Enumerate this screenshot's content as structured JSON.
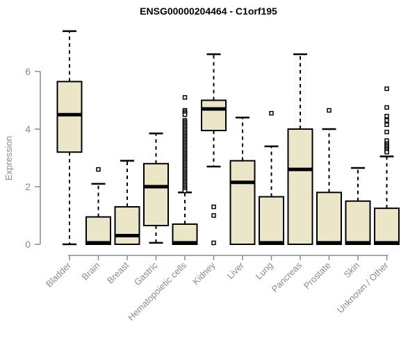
{
  "title": "ENSG00000204464 - C1orf195",
  "chart_data": {
    "type": "boxplot",
    "title": "ENSG00000204464 - C1orf195",
    "xlabel": "",
    "ylabel": "Expression",
    "ylim": [
      0,
      7.5
    ],
    "yticks": [
      0,
      2,
      4,
      6
    ],
    "grid": false,
    "legend": "none",
    "box_fill": "#ece6c9",
    "box_stroke": "#000000",
    "axis_color": "#8a8a8a",
    "categories": [
      "Bladder",
      "Brain",
      "Breast",
      "Gastric",
      "Hematopoietic cells",
      "Kidney",
      "Liver",
      "Lung",
      "Pancreas",
      "Prostate",
      "Skin",
      "Unknown / Other"
    ],
    "series": [
      {
        "name": "Bladder",
        "whisker_low": 0,
        "q1": 3.2,
        "median": 4.5,
        "q3": 5.65,
        "whisker_high": 7.4,
        "outliers": []
      },
      {
        "name": "Brain",
        "whisker_low": 0,
        "q1": 0,
        "median": 0.05,
        "q3": 0.95,
        "whisker_high": 2.1,
        "outliers": [
          2.6
        ]
      },
      {
        "name": "Breast",
        "whisker_low": 0,
        "q1": 0,
        "median": 0.3,
        "q3": 1.3,
        "whisker_high": 2.9,
        "outliers": []
      },
      {
        "name": "Gastric",
        "whisker_low": 0.05,
        "q1": 0.65,
        "median": 2.0,
        "q3": 2.8,
        "whisker_high": 3.85,
        "outliers": []
      },
      {
        "name": "Hematopoietic cells",
        "whisker_low": 0,
        "q1": 0,
        "median": 0.05,
        "q3": 0.7,
        "whisker_high": 1.8,
        "outliers": [
          5.1,
          4.65,
          4.6,
          4.55,
          4.5,
          4.3,
          4.25,
          4.2,
          4.15,
          4.1,
          4.05,
          4.0,
          3.95,
          3.9,
          3.85,
          3.8,
          3.75,
          3.7,
          3.65,
          3.6,
          3.55,
          3.5,
          3.45,
          3.4,
          3.35,
          3.3,
          3.25,
          3.2,
          3.15,
          3.1,
          3.05,
          3.0,
          2.95,
          2.9,
          2.85,
          2.8,
          2.75,
          2.7,
          2.65,
          2.6,
          2.55,
          2.5,
          2.45,
          2.4,
          2.35,
          2.3,
          2.25,
          2.2,
          2.15,
          2.1,
          2.05,
          2.0,
          1.95,
          1.9,
          1.85
        ]
      },
      {
        "name": "Kidney",
        "whisker_low": 2.7,
        "q1": 3.95,
        "median": 4.7,
        "q3": 5.0,
        "whisker_high": 6.6,
        "outliers": [
          1.3,
          1.0,
          0.05
        ]
      },
      {
        "name": "Liver",
        "whisker_low": 0,
        "q1": 0,
        "median": 2.15,
        "q3": 2.9,
        "whisker_high": 4.4,
        "outliers": []
      },
      {
        "name": "Lung",
        "whisker_low": 0,
        "q1": 0,
        "median": 0.05,
        "q3": 1.65,
        "whisker_high": 3.4,
        "outliers": [
          4.55
        ]
      },
      {
        "name": "Pancreas",
        "whisker_low": 0,
        "q1": 0,
        "median": 2.6,
        "q3": 4.0,
        "whisker_high": 6.6,
        "outliers": []
      },
      {
        "name": "Prostate",
        "whisker_low": 0,
        "q1": 0,
        "median": 0.05,
        "q3": 1.8,
        "whisker_high": 4.0,
        "outliers": [
          4.65
        ]
      },
      {
        "name": "Skin",
        "whisker_low": 0,
        "q1": 0,
        "median": 0.05,
        "q3": 1.5,
        "whisker_high": 2.65,
        "outliers": []
      },
      {
        "name": "Unknown / Other",
        "whisker_low": 0,
        "q1": 0,
        "median": 0.05,
        "q3": 1.25,
        "whisker_high": 3.05,
        "outliers": [
          5.4,
          4.75,
          4.45,
          4.3,
          4.15,
          3.9,
          3.6,
          3.5,
          3.45,
          3.4,
          3.35,
          3.3,
          3.25,
          3.2
        ]
      }
    ]
  }
}
